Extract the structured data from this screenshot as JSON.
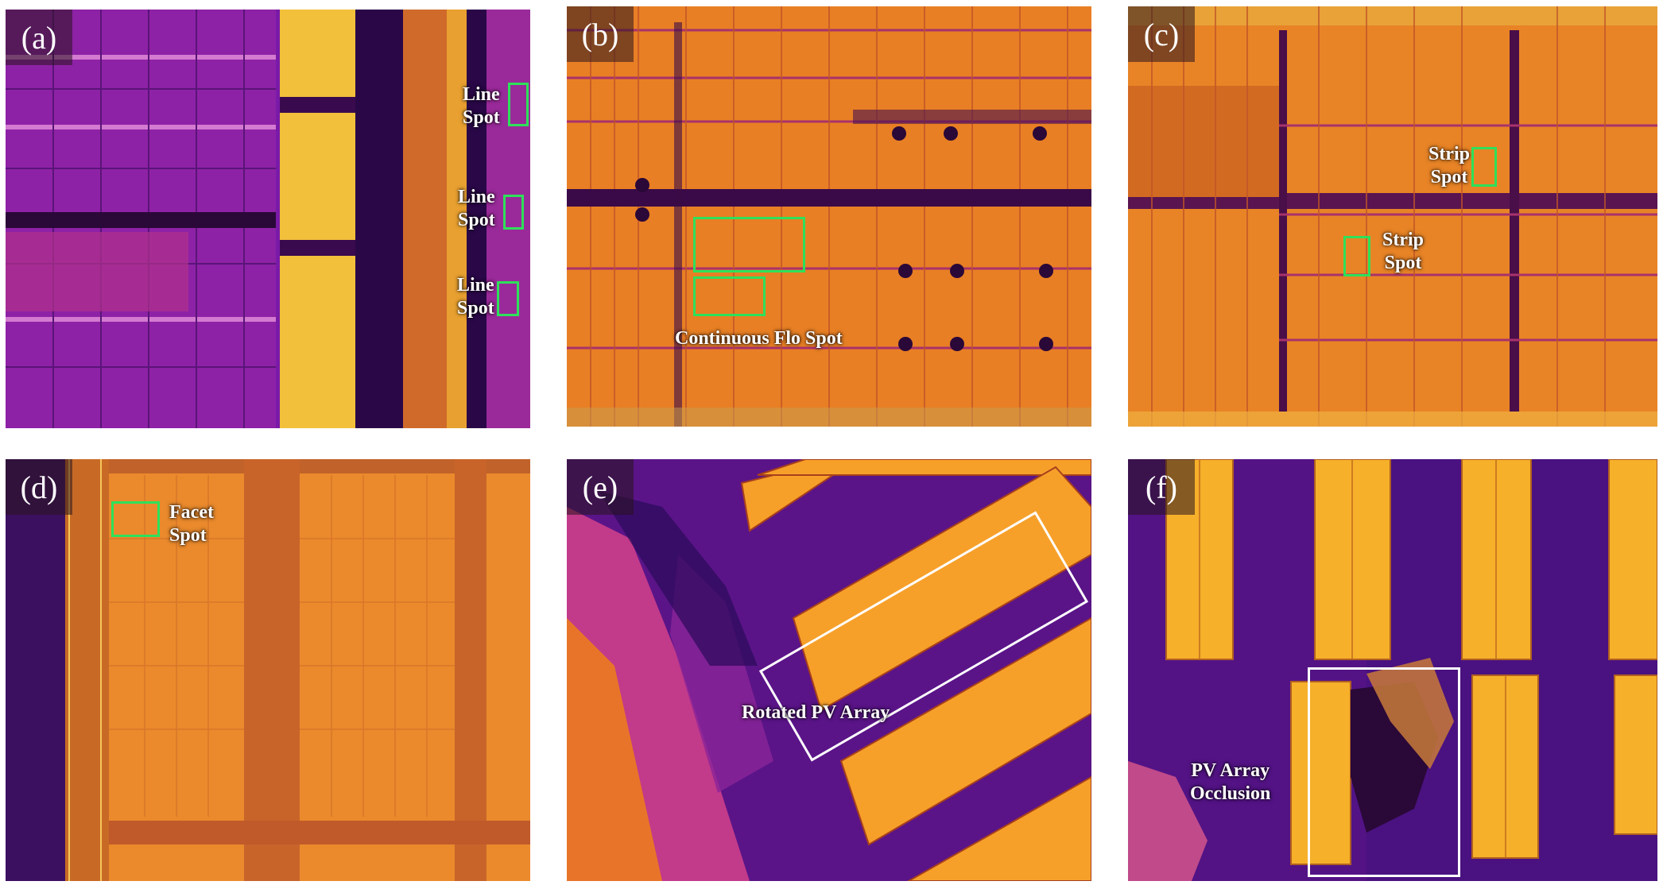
{
  "panels": [
    {
      "id": "a",
      "tag": "(a)"
    },
    {
      "id": "b",
      "tag": "(b)"
    },
    {
      "id": "c",
      "tag": "(c)"
    },
    {
      "id": "d",
      "tag": "(d)"
    },
    {
      "id": "e",
      "tag": "(e)"
    },
    {
      "id": "f",
      "tag": "(f)"
    }
  ],
  "labels": {
    "line_spot_1": [
      "Line",
      "Spot"
    ],
    "line_spot_2": [
      "Line",
      "Spot"
    ],
    "line_spot_3": [
      "Line",
      "Spot"
    ],
    "continuous": "Continuous Flo Spot",
    "strip_spot_1": [
      "Strip",
      "Spot"
    ],
    "strip_spot_2": [
      "Strip",
      "Spot"
    ],
    "facet_spot": [
      "Facet",
      "Spot"
    ],
    "rotated": "Rotated PV Array",
    "occlusion": [
      "PV Array",
      "Occlusion"
    ]
  },
  "colors": {
    "dark_purple": "#3a0a5e",
    "mid_purple": "#8a1fa0",
    "magenta": "#c0309a",
    "orange": "#f08a20",
    "yellow": "#ffd040",
    "detection_box": "#2ee05a",
    "annotation_box": "#ffffff"
  }
}
